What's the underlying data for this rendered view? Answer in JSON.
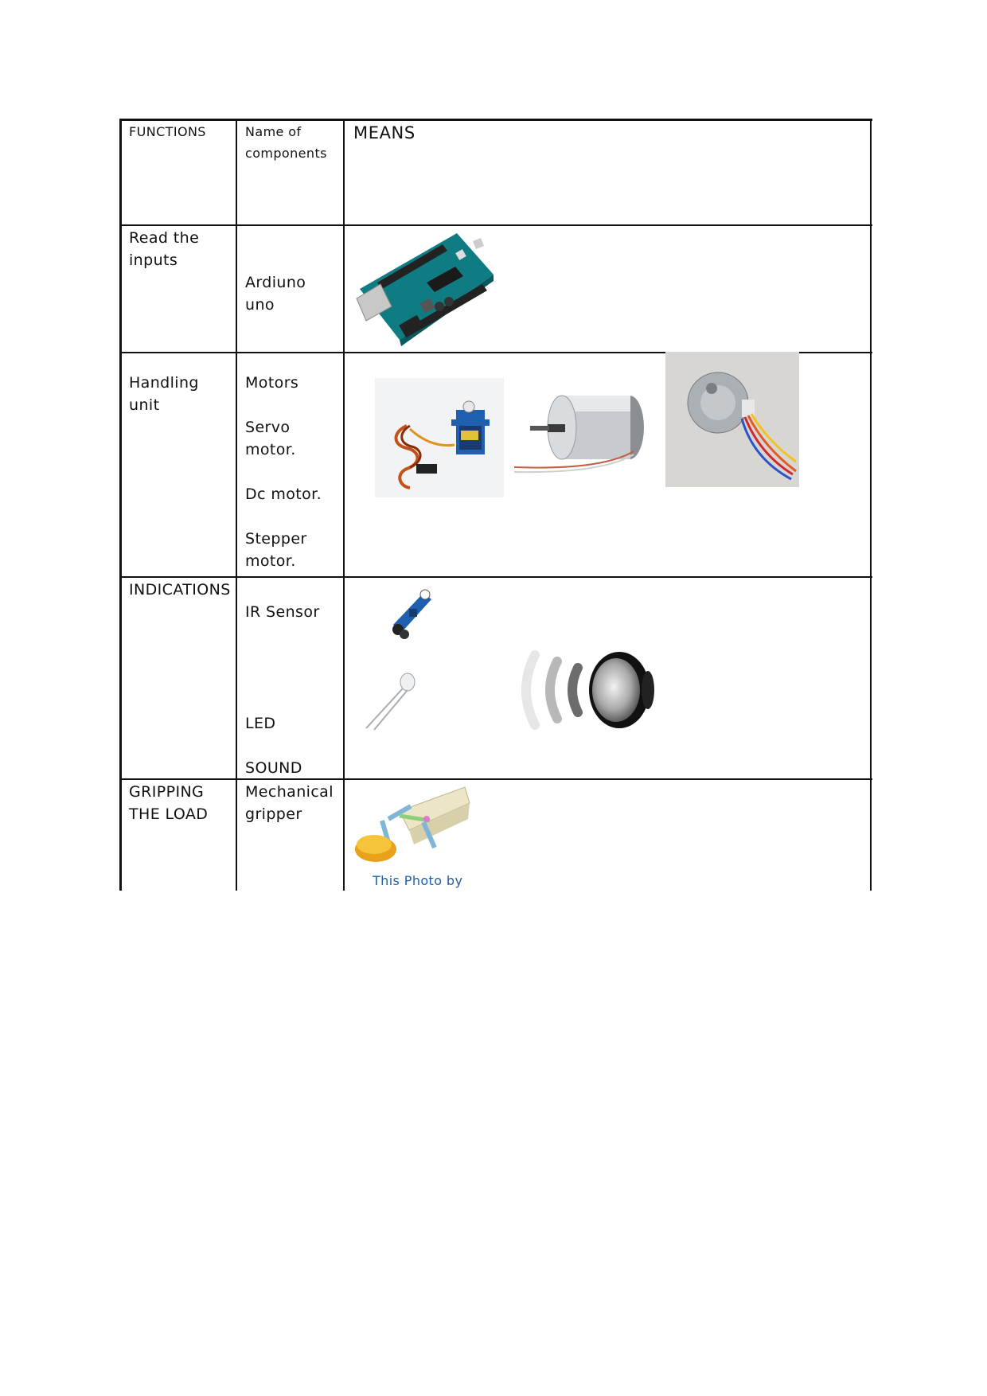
{
  "header": {
    "functions": "FUNCTIONS",
    "components": "Name of components",
    "means": "MEANS"
  },
  "rows": [
    {
      "function": "Read the inputs",
      "components": [
        "Ardiuno",
        "uno"
      ]
    },
    {
      "function": "Handling unit",
      "components": [
        "Motors",
        "Servo motor.",
        "Dc motor.",
        "Stepper motor."
      ]
    },
    {
      "function": "INDICATIONS",
      "components": [
        "IR Sensor",
        "LED",
        "SOUND"
      ]
    },
    {
      "function": "GRIPPING THE LOAD",
      "components": [
        "Mechanical gripper"
      ],
      "caption": "This Photo by"
    }
  ],
  "images": {
    "arduino": "arduino-board-image",
    "servo": "servo-motor-image",
    "dc_motor": "dc-motor-image",
    "stepper": "stepper-motor-image",
    "ir_sensor": "ir-sensor-image",
    "led": "led-image",
    "speaker": "speaker-icon",
    "gripper": "mechanical-gripper-image"
  }
}
